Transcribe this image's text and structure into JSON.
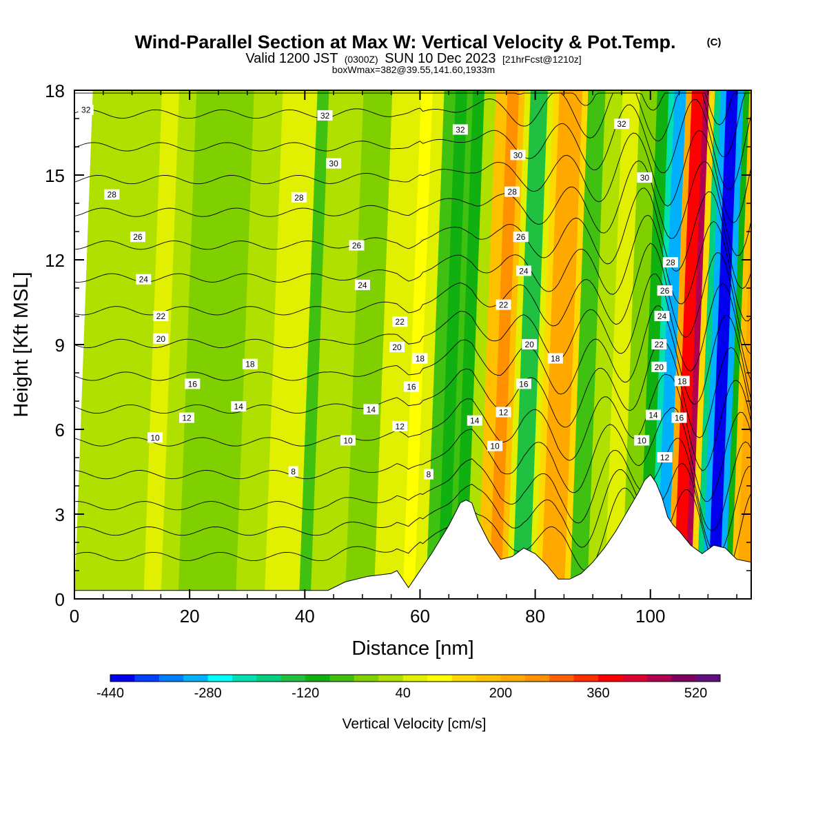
{
  "title": {
    "main": "Wind-Parallel Section at Max W: Vertical Velocity & Pot.Temp.",
    "mark": "(C)",
    "valid_a": "Valid 1200 JST",
    "valid_b": "(0300Z)",
    "valid_c": "SUN 10 Dec 2023",
    "valid_d": "[21hrFcst@1210z]",
    "box": "boxWmax=382@39.55,141.60,1933m"
  },
  "chart_data": {
    "type": "heatmap",
    "xlabel": "Distance [nm]",
    "ylabel": "Height [Kft MSL]",
    "xlim": [
      0,
      117.5
    ],
    "ylim": [
      0,
      18
    ],
    "x_ticks": [
      0,
      20,
      40,
      60,
      80,
      100
    ],
    "y_ticks": [
      0,
      3,
      6,
      9,
      12,
      15,
      18
    ],
    "grid": false,
    "colorbar": {
      "title": "Vertical Velocity [cm/s]",
      "placement": "bottom",
      "levels": [
        -440,
        -400,
        -360,
        -320,
        -280,
        -240,
        -200,
        -160,
        -120,
        -80,
        -40,
        0,
        40,
        80,
        120,
        160,
        200,
        240,
        280,
        320,
        360,
        400,
        440,
        480,
        520,
        560
      ],
      "colors": [
        "#0000ee",
        "#0040ff",
        "#0080ff",
        "#00b0ff",
        "#00ffff",
        "#00e0b0",
        "#00d080",
        "#20c040",
        "#10b010",
        "#40c010",
        "#80d000",
        "#b0e000",
        "#e0f000",
        "#ffff00",
        "#ffd800",
        "#ffc000",
        "#ffa800",
        "#ff9000",
        "#ff6000",
        "#ff3000",
        "#ff0000",
        "#e00030",
        "#b00050",
        "#800060",
        "#601080"
      ],
      "tick_labels": [
        "-440",
        "-280",
        "-120",
        "40",
        "200",
        "360",
        "520"
      ],
      "tick_values": [
        -440,
        -280,
        -120,
        40,
        200,
        360,
        520
      ]
    },
    "velocity_bands": [
      {
        "x0": 0,
        "x1": 12,
        "w": 20
      },
      {
        "x0": 12,
        "x1": 15,
        "w": 40
      },
      {
        "x0": 15,
        "x1": 18,
        "w": 10
      },
      {
        "x0": 18,
        "x1": 28,
        "w": -10
      },
      {
        "x0": 28,
        "x1": 33,
        "w": 20
      },
      {
        "x0": 33,
        "x1": 39,
        "w": 40
      },
      {
        "x0": 39,
        "x1": 41,
        "w": -60
      },
      {
        "x0": 41,
        "x1": 47,
        "w": 20
      },
      {
        "x0": 47,
        "x1": 52,
        "w": -30
      },
      {
        "x0": 52,
        "x1": 55,
        "w": 40
      },
      {
        "x0": 55,
        "x1": 57,
        "w": 70
      },
      {
        "x0": 57,
        "x1": 59,
        "w": 100
      },
      {
        "x0": 59,
        "x1": 61,
        "w": 60
      },
      {
        "x0": 61,
        "x1": 63,
        "w": -80
      },
      {
        "x0": 63,
        "x1": 65,
        "w": -120
      },
      {
        "x0": 65,
        "x1": 66,
        "w": -60
      },
      {
        "x0": 66,
        "x1": 68,
        "w": -110
      },
      {
        "x0": 68,
        "x1": 70,
        "w": 20
      },
      {
        "x0": 70,
        "x1": 72,
        "w": 170
      },
      {
        "x0": 72,
        "x1": 74,
        "w": 240
      },
      {
        "x0": 74,
        "x1": 75,
        "w": 170
      },
      {
        "x0": 75,
        "x1": 76,
        "w": 40
      },
      {
        "x0": 76,
        "x1": 79,
        "w": -160
      },
      {
        "x0": 79,
        "x1": 80,
        "w": 40
      },
      {
        "x0": 80,
        "x1": 81,
        "w": 150
      },
      {
        "x0": 81,
        "x1": 85,
        "w": 230
      },
      {
        "x0": 85,
        "x1": 86,
        "w": 120
      },
      {
        "x0": 86,
        "x1": 89,
        "w": -60
      },
      {
        "x0": 89,
        "x1": 92,
        "w": 20
      },
      {
        "x0": 92,
        "x1": 95,
        "w": 60
      },
      {
        "x0": 95,
        "x1": 98,
        "w": -20
      },
      {
        "x0": 98,
        "x1": 100,
        "w": -100
      },
      {
        "x0": 100,
        "x1": 101,
        "w": -220
      },
      {
        "x0": 101,
        "x1": 103,
        "w": -300
      },
      {
        "x0": 103,
        "x1": 104,
        "w": 200
      },
      {
        "x0": 104,
        "x1": 106,
        "w": 380
      },
      {
        "x0": 106,
        "x1": 107,
        "w": 470
      },
      {
        "x0": 107,
        "x1": 108,
        "w": 120
      },
      {
        "x0": 108,
        "x1": 109,
        "w": -200
      },
      {
        "x0": 109,
        "x1": 110,
        "w": -300
      },
      {
        "x0": 110,
        "x1": 112,
        "w": -430
      },
      {
        "x0": 112,
        "x1": 113,
        "w": -300
      },
      {
        "x0": 113,
        "x1": 114,
        "w": -120
      },
      {
        "x0": 114,
        "x1": 115,
        "w": 160
      },
      {
        "x0": 115,
        "x1": 117.5,
        "w": 220
      }
    ],
    "terrain": {
      "x": [
        0,
        44,
        47,
        51,
        55,
        56,
        58,
        59,
        62,
        65,
        67,
        68,
        69,
        70,
        72,
        74,
        76,
        78,
        80,
        82,
        84,
        86,
        88,
        90,
        92,
        94,
        96,
        98,
        99,
        100,
        101,
        102,
        103,
        104,
        105,
        107,
        109,
        111,
        113,
        115,
        117.5
      ],
      "y": [
        0.3,
        0.3,
        0.6,
        0.8,
        0.9,
        1.0,
        0.4,
        0.7,
        1.6,
        2.6,
        3.4,
        3.5,
        3.4,
        2.8,
        2.0,
        1.4,
        1.5,
        1.8,
        1.6,
        1.2,
        0.7,
        0.7,
        0.9,
        1.3,
        1.8,
        2.4,
        3.1,
        3.8,
        4.2,
        4.4,
        4.1,
        3.6,
        2.9,
        2.6,
        2.4,
        1.9,
        1.6,
        1.9,
        1.8,
        1.4,
        1.3
      ]
    },
    "theta_contours": {
      "levels": [
        2,
        4,
        6,
        8,
        10,
        12,
        14,
        16,
        18,
        20,
        22,
        24,
        26,
        28,
        30,
        32
      ],
      "labels": [
        {
          "text": "32",
          "x": 2,
          "y": 17.3
        },
        {
          "text": "28",
          "x": 6.5,
          "y": 14.3
        },
        {
          "text": "26",
          "x": 11,
          "y": 12.8
        },
        {
          "text": "24",
          "x": 12,
          "y": 11.3
        },
        {
          "text": "22",
          "x": 15,
          "y": 10.0
        },
        {
          "text": "20",
          "x": 15,
          "y": 9.2
        },
        {
          "text": "16",
          "x": 20.5,
          "y": 7.6
        },
        {
          "text": "14",
          "x": 28.5,
          "y": 6.8
        },
        {
          "text": "12",
          "x": 19.5,
          "y": 6.4
        },
        {
          "text": "10",
          "x": 14,
          "y": 5.7
        },
        {
          "text": "18",
          "x": 30.5,
          "y": 8.3
        },
        {
          "text": "8",
          "x": 38,
          "y": 4.5
        },
        {
          "text": "32",
          "x": 43.5,
          "y": 17.1
        },
        {
          "text": "30",
          "x": 45,
          "y": 15.4
        },
        {
          "text": "28",
          "x": 39,
          "y": 14.2
        },
        {
          "text": "26",
          "x": 49,
          "y": 12.5
        },
        {
          "text": "24",
          "x": 50,
          "y": 11.1
        },
        {
          "text": "22",
          "x": 56.5,
          "y": 9.8
        },
        {
          "text": "20",
          "x": 56,
          "y": 8.9
        },
        {
          "text": "18",
          "x": 60,
          "y": 8.5
        },
        {
          "text": "16",
          "x": 58.5,
          "y": 7.5
        },
        {
          "text": "14",
          "x": 51.5,
          "y": 6.7
        },
        {
          "text": "12",
          "x": 56.5,
          "y": 6.1
        },
        {
          "text": "10",
          "x": 47.5,
          "y": 5.6
        },
        {
          "text": "8",
          "x": 61.5,
          "y": 4.4
        },
        {
          "text": "32",
          "x": 67,
          "y": 16.6
        },
        {
          "text": "30",
          "x": 77,
          "y": 15.7
        },
        {
          "text": "28",
          "x": 76,
          "y": 14.4
        },
        {
          "text": "26",
          "x": 77.5,
          "y": 12.8
        },
        {
          "text": "24",
          "x": 78,
          "y": 11.6
        },
        {
          "text": "22",
          "x": 74.5,
          "y": 10.4
        },
        {
          "text": "20",
          "x": 79,
          "y": 9.0
        },
        {
          "text": "18",
          "x": 83.5,
          "y": 8.5
        },
        {
          "text": "16",
          "x": 78,
          "y": 7.6
        },
        {
          "text": "14",
          "x": 69.5,
          "y": 6.3
        },
        {
          "text": "12",
          "x": 74.5,
          "y": 6.6
        },
        {
          "text": "10",
          "x": 73,
          "y": 5.4
        },
        {
          "text": "32",
          "x": 95,
          "y": 16.8
        },
        {
          "text": "30",
          "x": 99,
          "y": 14.9
        },
        {
          "text": "28",
          "x": 103.5,
          "y": 11.9
        },
        {
          "text": "26",
          "x": 102.5,
          "y": 10.9
        },
        {
          "text": "24",
          "x": 102,
          "y": 10.0
        },
        {
          "text": "22",
          "x": 101.5,
          "y": 9.0
        },
        {
          "text": "20",
          "x": 101.5,
          "y": 8.2
        },
        {
          "text": "18",
          "x": 105.5,
          "y": 7.7
        },
        {
          "text": "16",
          "x": 105,
          "y": 6.4
        },
        {
          "text": "14",
          "x": 100.5,
          "y": 6.5
        },
        {
          "text": "12",
          "x": 102.5,
          "y": 5.0
        },
        {
          "text": "10",
          "x": 98.5,
          "y": 5.6
        }
      ]
    }
  }
}
